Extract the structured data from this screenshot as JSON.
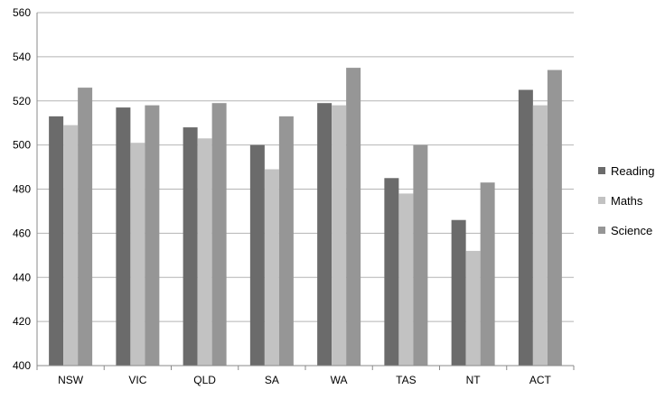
{
  "chart_data": {
    "type": "bar",
    "categories": [
      "NSW",
      "VIC",
      "QLD",
      "SA",
      "WA",
      "TAS",
      "NT",
      "ACT"
    ],
    "series": [
      {
        "name": "Reading",
        "color": "#6b6b6b",
        "values": [
          513,
          517,
          508,
          500,
          519,
          485,
          466,
          525
        ]
      },
      {
        "name": "Maths",
        "color": "#c2c2c2",
        "values": [
          509,
          501,
          503,
          489,
          518,
          478,
          452,
          518
        ]
      },
      {
        "name": "Science",
        "color": "#969696",
        "values": [
          526,
          518,
          519,
          513,
          535,
          500,
          483,
          534
        ]
      }
    ],
    "ylim": [
      400,
      560
    ],
    "yticks": [
      400,
      420,
      440,
      460,
      480,
      500,
      520,
      540,
      560
    ],
    "grid": true,
    "legend": "right"
  }
}
